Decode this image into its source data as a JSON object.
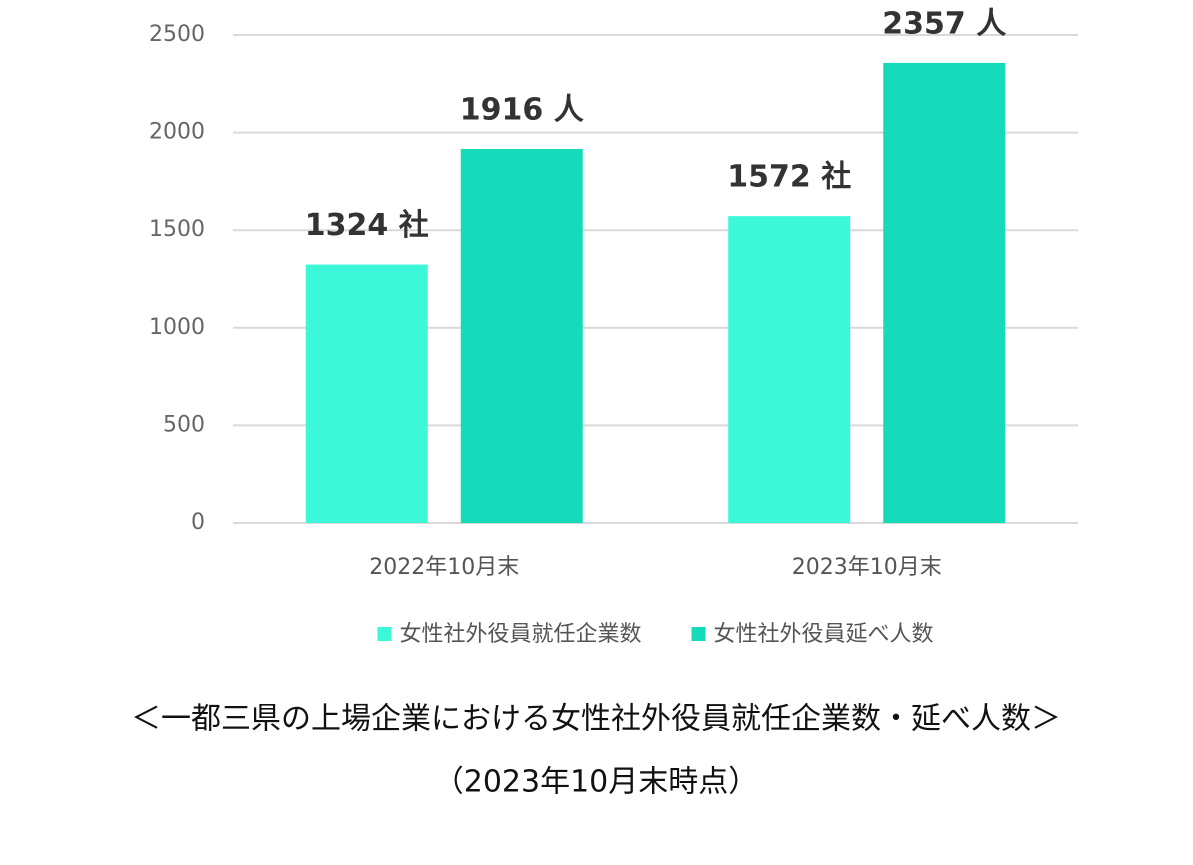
{
  "chart_data": {
    "type": "bar",
    "title": "＜一都三県の上場企業における女性社外役員就任企業数・延べ人数＞",
    "subtitle": "（2023年10月末時点）",
    "categories": [
      "2022年10月末",
      "2023年10月末"
    ],
    "series": [
      {
        "name": "女性社外役員就任企業数",
        "color": "#3cf7d8",
        "values": [
          1324,
          1572
        ],
        "value_labels": [
          "1324 社",
          "1572 社"
        ]
      },
      {
        "name": "女性社外役員延べ人数",
        "color": "#15dbba",
        "values": [
          1916,
          2357
        ],
        "value_labels": [
          "1916 人",
          "2357 人"
        ]
      }
    ],
    "ylim": [
      0,
      2500
    ],
    "yticks": [
      0,
      500,
      1000,
      1500,
      2000,
      2500
    ],
    "grid": true,
    "legend": "bottom"
  }
}
